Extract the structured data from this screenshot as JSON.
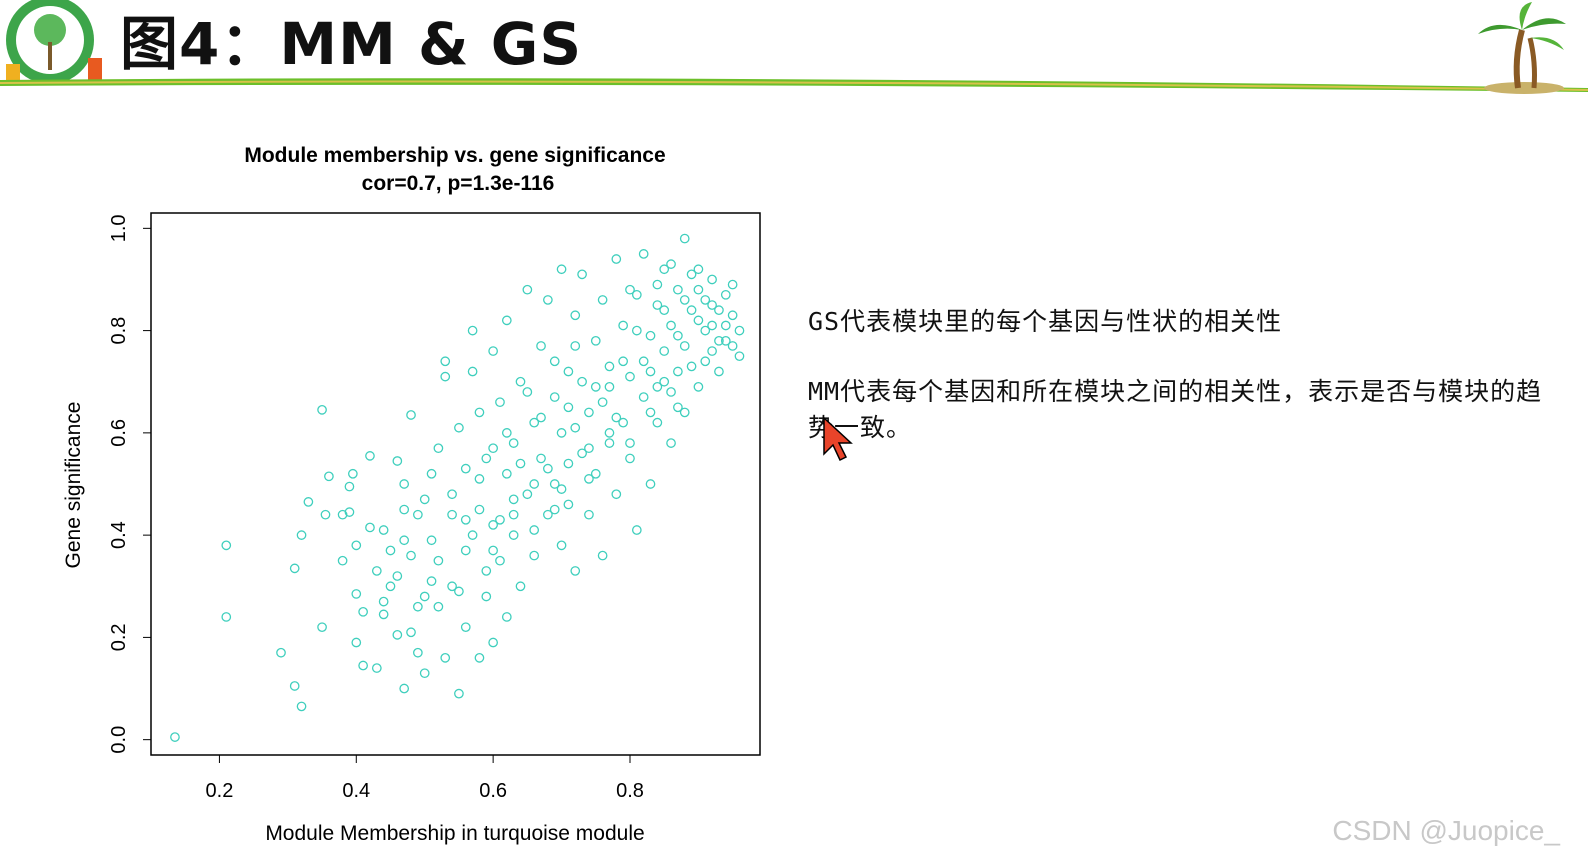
{
  "slide": {
    "title": "图4：MM & GS",
    "logo_icon": "tree-logo-icon",
    "decor_icon": "palm-tree-icon"
  },
  "notes": {
    "gs_text": "GS代表模块里的每个基因与性状的相关性",
    "mm_text": "MM代表每个基因和所在模块之间的相关性，表示是否与模块的趋势一致。"
  },
  "watermark": "CSDN @Juopice_",
  "colors": {
    "points": "#3fcfbd",
    "header_line": "#6cbf2a",
    "cursor": "#e8442a"
  },
  "chart_data": {
    "type": "scatter",
    "title": "Module membership vs. gene significance",
    "subtitle": "cor=0.7, p=1.3e-116",
    "xlabel": "Module Membership in turquoise module",
    "ylabel": "Gene significance",
    "xlim": [
      0.1,
      0.99
    ],
    "ylim": [
      -0.03,
      1.03
    ],
    "xticks": [
      "0.2",
      "0.4",
      "0.6",
      "0.8"
    ],
    "yticks": [
      "0.0",
      "0.2",
      "0.4",
      "0.6",
      "0.8",
      "1.0"
    ],
    "xtick_values": [
      0.2,
      0.4,
      0.6,
      0.8
    ],
    "ytick_values": [
      0.0,
      0.2,
      0.4,
      0.6,
      0.8,
      1.0
    ],
    "marker": "open-circle",
    "grid": false,
    "points": [
      [
        0.135,
        0.005
      ],
      [
        0.21,
        0.38
      ],
      [
        0.21,
        0.24
      ],
      [
        0.29,
        0.17
      ],
      [
        0.31,
        0.105
      ],
      [
        0.32,
        0.065
      ],
      [
        0.31,
        0.335
      ],
      [
        0.32,
        0.4
      ],
      [
        0.33,
        0.465
      ],
      [
        0.35,
        0.645
      ],
      [
        0.35,
        0.22
      ],
      [
        0.355,
        0.44
      ],
      [
        0.36,
        0.515
      ],
      [
        0.38,
        0.35
      ],
      [
        0.38,
        0.44
      ],
      [
        0.39,
        0.495
      ],
      [
        0.39,
        0.445
      ],
      [
        0.395,
        0.52
      ],
      [
        0.4,
        0.19
      ],
      [
        0.4,
        0.38
      ],
      [
        0.4,
        0.285
      ],
      [
        0.41,
        0.25
      ],
      [
        0.41,
        0.145
      ],
      [
        0.42,
        0.415
      ],
      [
        0.42,
        0.555
      ],
      [
        0.43,
        0.14
      ],
      [
        0.43,
        0.33
      ],
      [
        0.44,
        0.245
      ],
      [
        0.44,
        0.41
      ],
      [
        0.45,
        0.37
      ],
      [
        0.45,
        0.3
      ],
      [
        0.46,
        0.545
      ],
      [
        0.46,
        0.205
      ],
      [
        0.47,
        0.1
      ],
      [
        0.47,
        0.45
      ],
      [
        0.47,
        0.5
      ],
      [
        0.48,
        0.21
      ],
      [
        0.48,
        0.36
      ],
      [
        0.48,
        0.635
      ],
      [
        0.49,
        0.44
      ],
      [
        0.49,
        0.17
      ],
      [
        0.5,
        0.28
      ],
      [
        0.5,
        0.47
      ],
      [
        0.5,
        0.13
      ],
      [
        0.51,
        0.52
      ],
      [
        0.51,
        0.39
      ],
      [
        0.52,
        0.26
      ],
      [
        0.52,
        0.57
      ],
      [
        0.53,
        0.71
      ],
      [
        0.53,
        0.16
      ],
      [
        0.53,
        0.74
      ],
      [
        0.54,
        0.3
      ],
      [
        0.54,
        0.44
      ],
      [
        0.55,
        0.09
      ],
      [
        0.55,
        0.61
      ],
      [
        0.56,
        0.37
      ],
      [
        0.56,
        0.53
      ],
      [
        0.56,
        0.22
      ],
      [
        0.57,
        0.72
      ],
      [
        0.57,
        0.8
      ],
      [
        0.58,
        0.16
      ],
      [
        0.58,
        0.45
      ],
      [
        0.58,
        0.64
      ],
      [
        0.59,
        0.28
      ],
      [
        0.59,
        0.55
      ],
      [
        0.6,
        0.76
      ],
      [
        0.6,
        0.42
      ],
      [
        0.6,
        0.19
      ],
      [
        0.61,
        0.35
      ],
      [
        0.61,
        0.66
      ],
      [
        0.62,
        0.52
      ],
      [
        0.62,
        0.82
      ],
      [
        0.62,
        0.24
      ],
      [
        0.63,
        0.58
      ],
      [
        0.63,
        0.4
      ],
      [
        0.64,
        0.7
      ],
      [
        0.64,
        0.3
      ],
      [
        0.65,
        0.48
      ],
      [
        0.65,
        0.88
      ],
      [
        0.66,
        0.62
      ],
      [
        0.66,
        0.36
      ],
      [
        0.67,
        0.55
      ],
      [
        0.67,
        0.77
      ],
      [
        0.68,
        0.44
      ],
      [
        0.68,
        0.86
      ],
      [
        0.69,
        0.67
      ],
      [
        0.69,
        0.5
      ],
      [
        0.7,
        0.92
      ],
      [
        0.7,
        0.38
      ],
      [
        0.7,
        0.6
      ],
      [
        0.71,
        0.72
      ],
      [
        0.71,
        0.46
      ],
      [
        0.72,
        0.83
      ],
      [
        0.72,
        0.33
      ],
      [
        0.73,
        0.56
      ],
      [
        0.73,
        0.91
      ],
      [
        0.74,
        0.64
      ],
      [
        0.74,
        0.44
      ],
      [
        0.75,
        0.78
      ],
      [
        0.75,
        0.52
      ],
      [
        0.76,
        0.86
      ],
      [
        0.76,
        0.36
      ],
      [
        0.77,
        0.69
      ],
      [
        0.77,
        0.58
      ],
      [
        0.78,
        0.94
      ],
      [
        0.78,
        0.48
      ],
      [
        0.79,
        0.74
      ],
      [
        0.79,
        0.62
      ],
      [
        0.8,
        0.88
      ],
      [
        0.8,
        0.55
      ],
      [
        0.81,
        0.8
      ],
      [
        0.81,
        0.41
      ],
      [
        0.82,
        0.67
      ],
      [
        0.82,
        0.95
      ],
      [
        0.83,
        0.72
      ],
      [
        0.83,
        0.5
      ],
      [
        0.84,
        0.85
      ],
      [
        0.84,
        0.62
      ],
      [
        0.85,
        0.92
      ],
      [
        0.85,
        0.76
      ],
      [
        0.86,
        0.68
      ],
      [
        0.86,
        0.58
      ],
      [
        0.87,
        0.88
      ],
      [
        0.87,
        0.79
      ],
      [
        0.88,
        0.98
      ],
      [
        0.88,
        0.64
      ],
      [
        0.89,
        0.84
      ],
      [
        0.89,
        0.73
      ],
      [
        0.9,
        0.92
      ],
      [
        0.9,
        0.69
      ],
      [
        0.91,
        0.8
      ],
      [
        0.91,
        0.86
      ],
      [
        0.92,
        0.76
      ],
      [
        0.92,
        0.9
      ],
      [
        0.93,
        0.72
      ],
      [
        0.93,
        0.84
      ],
      [
        0.94,
        0.87
      ],
      [
        0.94,
        0.78
      ],
      [
        0.95,
        0.83
      ],
      [
        0.95,
        0.89
      ],
      [
        0.96,
        0.8
      ],
      [
        0.96,
        0.75
      ],
      [
        0.46,
        0.32
      ],
      [
        0.49,
        0.26
      ],
      [
        0.52,
        0.35
      ],
      [
        0.55,
        0.29
      ],
      [
        0.57,
        0.4
      ],
      [
        0.59,
        0.33
      ],
      [
        0.61,
        0.43
      ],
      [
        0.63,
        0.47
      ],
      [
        0.66,
        0.41
      ],
      [
        0.68,
        0.53
      ],
      [
        0.7,
        0.49
      ],
      [
        0.72,
        0.61
      ],
      [
        0.74,
        0.57
      ],
      [
        0.76,
        0.66
      ],
      [
        0.78,
        0.63
      ],
      [
        0.8,
        0.71
      ],
      [
        0.82,
        0.74
      ],
      [
        0.84,
        0.69
      ],
      [
        0.86,
        0.81
      ],
      [
        0.88,
        0.77
      ],
      [
        0.9,
        0.82
      ],
      [
        0.92,
        0.85
      ],
      [
        0.94,
        0.81
      ],
      [
        0.44,
        0.27
      ],
      [
        0.47,
        0.39
      ],
      [
        0.51,
        0.31
      ],
      [
        0.54,
        0.48
      ],
      [
        0.58,
        0.51
      ],
      [
        0.6,
        0.57
      ],
      [
        0.64,
        0.54
      ],
      [
        0.67,
        0.63
      ],
      [
        0.71,
        0.65
      ],
      [
        0.73,
        0.7
      ],
      [
        0.77,
        0.73
      ],
      [
        0.79,
        0.81
      ],
      [
        0.83,
        0.79
      ],
      [
        0.85,
        0.84
      ],
      [
        0.87,
        0.72
      ],
      [
        0.89,
        0.91
      ],
      [
        0.91,
        0.74
      ],
      [
        0.93,
        0.78
      ],
      [
        0.62,
        0.6
      ],
      [
        0.65,
        0.68
      ],
      [
        0.69,
        0.74
      ],
      [
        0.72,
        0.77
      ],
      [
        0.75,
        0.69
      ],
      [
        0.81,
        0.87
      ],
      [
        0.84,
        0.89
      ],
      [
        0.86,
        0.93
      ],
      [
        0.88,
        0.86
      ],
      [
        0.9,
        0.88
      ],
      [
        0.92,
        0.81
      ],
      [
        0.95,
        0.77
      ],
      [
        0.56,
        0.43
      ],
      [
        0.6,
        0.37
      ],
      [
        0.63,
        0.44
      ],
      [
        0.66,
        0.5
      ],
      [
        0.69,
        0.45
      ],
      [
        0.71,
        0.54
      ],
      [
        0.74,
        0.51
      ],
      [
        0.77,
        0.6
      ],
      [
        0.8,
        0.58
      ],
      [
        0.83,
        0.64
      ],
      [
        0.85,
        0.7
      ],
      [
        0.87,
        0.65
      ]
    ]
  }
}
